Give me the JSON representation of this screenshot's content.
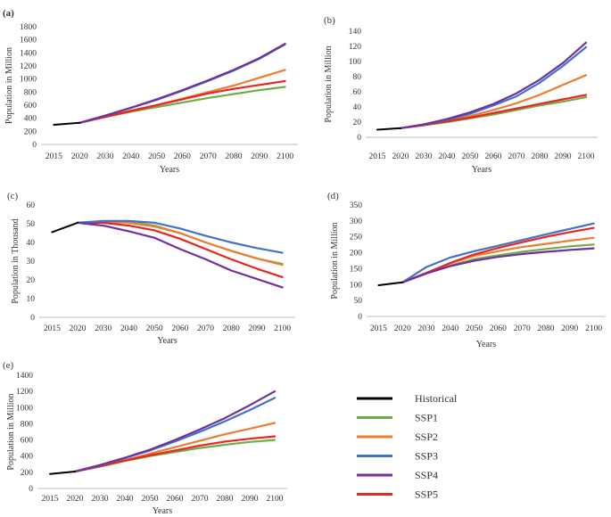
{
  "colors": {
    "Historical": "#000000",
    "SSP1": "#70ad47",
    "SSP2": "#ed7d31",
    "SSP3": "#4472c4",
    "SSP4": "#7030a0",
    "SSP5": "#e8251f"
  },
  "legend": {
    "entries": [
      "Historical",
      "SSP1",
      "SSP2",
      "SSP3",
      "SSP4",
      "SSP5"
    ]
  },
  "chart_data": [
    {
      "panel": "(a)",
      "type": "line",
      "xlabel": "Years",
      "ylabel": "Population in Million",
      "ylim": [
        0,
        1800
      ],
      "yticks": [
        0,
        200,
        400,
        600,
        800,
        1000,
        1200,
        1400,
        1600,
        1800
      ],
      "categories": [
        "2015",
        "2020",
        "2030",
        "2040",
        "2050",
        "2060",
        "2070",
        "2080",
        "2090",
        "2100"
      ],
      "series": [
        {
          "name": "Historical",
          "values": [
            300,
            330,
            null,
            null,
            null,
            null,
            null,
            null,
            null,
            null
          ]
        },
        {
          "name": "SSP1",
          "values": [
            null,
            330,
            420,
            500,
            570,
            640,
            710,
            770,
            830,
            880
          ]
        },
        {
          "name": "SSP2",
          "values": [
            null,
            330,
            425,
            520,
            600,
            700,
            800,
            900,
            1020,
            1140
          ]
        },
        {
          "name": "SSP3",
          "values": [
            null,
            330,
            440,
            560,
            680,
            820,
            970,
            1130,
            1310,
            1530
          ]
        },
        {
          "name": "SSP4",
          "values": [
            null,
            330,
            440,
            560,
            690,
            830,
            980,
            1140,
            1320,
            1540
          ]
        },
        {
          "name": "SSP5",
          "values": [
            null,
            330,
            420,
            510,
            600,
            690,
            780,
            850,
            910,
            970
          ]
        }
      ]
    },
    {
      "panel": "(b)",
      "type": "line",
      "xlabel": "Years",
      "ylabel": "Population in Million",
      "ylim": [
        0,
        140
      ],
      "yticks": [
        0,
        20,
        40,
        60,
        80,
        100,
        120,
        140
      ],
      "categories": [
        "2015",
        "2020",
        "2030",
        "2040",
        "2050",
        "2060",
        "2070",
        "2080",
        "2090",
        "2100"
      ],
      "series": [
        {
          "name": "Historical",
          "values": [
            10,
            12,
            null,
            null,
            null,
            null,
            null,
            null,
            null,
            null
          ]
        },
        {
          "name": "SSP1",
          "values": [
            null,
            12,
            16,
            20,
            25,
            30,
            36,
            42,
            47,
            53
          ]
        },
        {
          "name": "SSP2",
          "values": [
            null,
            12,
            16,
            22,
            28,
            36,
            45,
            56,
            69,
            82
          ]
        },
        {
          "name": "SSP3",
          "values": [
            null,
            12,
            17,
            23,
            31,
            42,
            54,
            72,
            94,
            119
          ]
        },
        {
          "name": "SSP4",
          "values": [
            null,
            12,
            17,
            24,
            33,
            44,
            58,
            76,
            98,
            125
          ]
        },
        {
          "name": "SSP5",
          "values": [
            null,
            12,
            16,
            21,
            26,
            32,
            38,
            44,
            50,
            56
          ]
        }
      ]
    },
    {
      "panel": "(c)",
      "type": "line",
      "xlabel": "Years",
      "ylabel": "Population in Thousand",
      "ylim": [
        0,
        60
      ],
      "yticks": [
        0,
        10,
        20,
        30,
        40,
        50,
        60
      ],
      "categories": [
        "2015",
        "2020",
        "2030",
        "2040",
        "2050",
        "2060",
        "2070",
        "2080",
        "2090",
        "2100"
      ],
      "series": [
        {
          "name": "Historical",
          "values": [
            45.5,
            50.5,
            null,
            null,
            null,
            null,
            null,
            null,
            null,
            null
          ]
        },
        {
          "name": "SSP1",
          "values": [
            null,
            50.5,
            51,
            51,
            49,
            45,
            40,
            35.5,
            31.5,
            28.5
          ]
        },
        {
          "name": "SSP2",
          "values": [
            null,
            50.5,
            51,
            50.5,
            48.5,
            45,
            40,
            35.5,
            31.5,
            28
          ]
        },
        {
          "name": "SSP3",
          "values": [
            null,
            50.5,
            51.5,
            51.5,
            50.5,
            47.5,
            43.5,
            40,
            37,
            34.5
          ]
        },
        {
          "name": "SSP4",
          "values": [
            null,
            50.5,
            49,
            46,
            42.5,
            36.5,
            31,
            25,
            20.5,
            16
          ]
        },
        {
          "name": "SSP5",
          "values": [
            null,
            50.5,
            50.5,
            49,
            46.5,
            42,
            36.5,
            31,
            26,
            21.5
          ]
        }
      ]
    },
    {
      "panel": "(d)",
      "type": "line",
      "xlabel": "Years",
      "ylabel": "Population in Million",
      "ylim": [
        0,
        350
      ],
      "yticks": [
        0,
        50,
        100,
        150,
        200,
        250,
        300,
        350
      ],
      "categories": [
        "2015",
        "2020",
        "2030",
        "2040",
        "2050",
        "2060",
        "2070",
        "2080",
        "2090",
        "2100"
      ],
      "series": [
        {
          "name": "Historical",
          "values": [
            98,
            107,
            null,
            null,
            null,
            null,
            null,
            null,
            null,
            null
          ]
        },
        {
          "name": "SSP1",
          "values": [
            null,
            107,
            135,
            160,
            180,
            192,
            203,
            212,
            220,
            226
          ]
        },
        {
          "name": "SSP2",
          "values": [
            null,
            107,
            137,
            167,
            190,
            205,
            218,
            228,
            238,
            247
          ]
        },
        {
          "name": "SSP3",
          "values": [
            null,
            107,
            155,
            185,
            205,
            222,
            240,
            258,
            275,
            292
          ]
        },
        {
          "name": "SSP4",
          "values": [
            null,
            107,
            135,
            158,
            175,
            187,
            196,
            203,
            209,
            214
          ]
        },
        {
          "name": "SSP5",
          "values": [
            null,
            107,
            137,
            168,
            195,
            215,
            233,
            250,
            265,
            278
          ]
        }
      ]
    },
    {
      "panel": "(e)",
      "type": "line",
      "xlabel": "Years",
      "ylabel": "Population in Million",
      "ylim": [
        0,
        1400
      ],
      "yticks": [
        0,
        200,
        400,
        600,
        800,
        1000,
        1200,
        1400
      ],
      "categories": [
        "2015",
        "2020",
        "2030",
        "2040",
        "2050",
        "2060",
        "2070",
        "2080",
        "2090",
        "2100"
      ],
      "series": [
        {
          "name": "Historical",
          "values": [
            180,
            210,
            null,
            null,
            null,
            null,
            null,
            null,
            null,
            null
          ]
        },
        {
          "name": "SSP1",
          "values": [
            null,
            210,
            270,
            340,
            400,
            450,
            500,
            540,
            575,
            600
          ]
        },
        {
          "name": "SSP2",
          "values": [
            null,
            210,
            275,
            350,
            430,
            510,
            590,
            670,
            740,
            810
          ]
        },
        {
          "name": "SSP3",
          "values": [
            null,
            210,
            285,
            375,
            470,
            580,
            700,
            830,
            970,
            1120
          ]
        },
        {
          "name": "SSP4",
          "values": [
            null,
            210,
            290,
            380,
            480,
            600,
            730,
            870,
            1030,
            1200
          ]
        },
        {
          "name": "SSP5",
          "values": [
            null,
            210,
            275,
            345,
            410,
            470,
            530,
            580,
            615,
            645
          ]
        }
      ]
    }
  ]
}
